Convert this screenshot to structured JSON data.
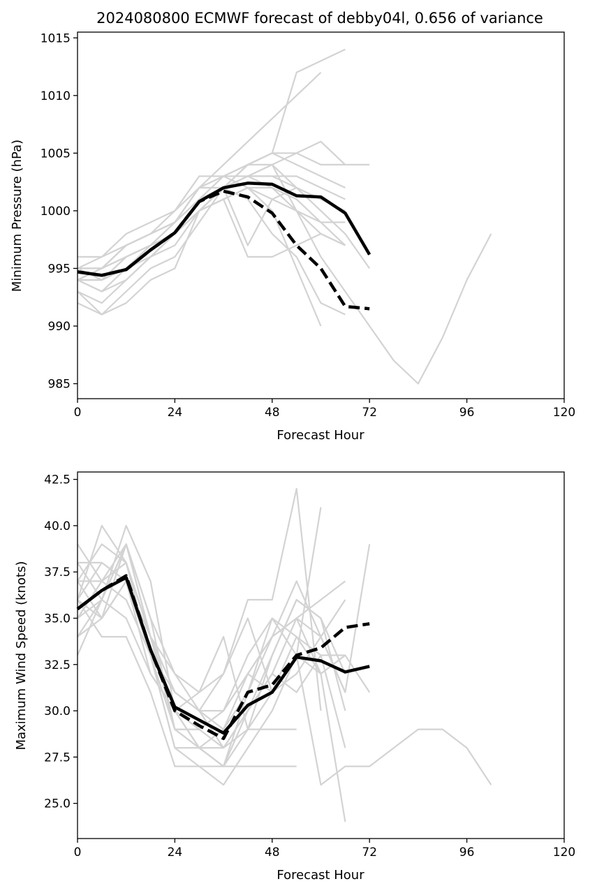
{
  "chart_data": [
    {
      "type": "line",
      "title": "2024080800 ECMWF forecast of debby04l, 0.656 of variance",
      "xlabel": "Forecast Hour",
      "ylabel": "Minimum Pressure (hPa)",
      "xlim": [
        0,
        120
      ],
      "ylim": [
        983.7,
        1015.5
      ],
      "xticks": [
        0,
        24,
        48,
        72,
        96,
        120
      ],
      "yticks": [
        985,
        990,
        995,
        1000,
        1005,
        1010,
        1015
      ],
      "ensemble_members": [
        {
          "x": [
            0,
            6,
            12,
            18,
            24,
            30,
            36,
            42,
            48,
            54,
            60,
            66
          ],
          "y": [
            995,
            996,
            998,
            999,
            1000,
            1002,
            1003,
            1004,
            1005,
            1012,
            1013,
            1014
          ]
        },
        {
          "x": [
            0,
            6,
            12,
            18,
            24,
            30,
            36,
            42,
            48,
            54,
            60
          ],
          "y": [
            994,
            995,
            997,
            998,
            999,
            1002,
            1004,
            1006,
            1008,
            1010,
            1012
          ]
        },
        {
          "x": [
            0,
            6,
            12,
            18,
            24,
            30,
            36,
            42,
            48,
            54,
            60,
            66,
            72,
            78,
            84,
            90,
            96,
            102
          ],
          "y": [
            996,
            996,
            997,
            998,
            999,
            1001,
            1002,
            1003,
            1004,
            1000,
            996,
            993,
            990,
            987,
            985,
            989,
            994,
            998
          ]
        },
        {
          "x": [
            0,
            6,
            12,
            18,
            24,
            30,
            36,
            42,
            48,
            54,
            60,
            66,
            72
          ],
          "y": [
            995,
            995,
            996,
            997,
            998,
            1001,
            1002,
            1004,
            1005,
            1005,
            1004,
            1004,
            1004
          ]
        },
        {
          "x": [
            0,
            6,
            12,
            18,
            24,
            30,
            36,
            42,
            48,
            54,
            60,
            66
          ],
          "y": [
            994,
            994,
            996,
            997,
            998,
            1000,
            1002,
            1003,
            1004,
            1005,
            1006,
            1004
          ]
        },
        {
          "x": [
            0,
            6,
            12,
            18,
            24,
            30,
            36,
            42,
            48,
            54,
            60
          ],
          "y": [
            993,
            991,
            992,
            994,
            995,
            1000,
            1001,
            1002,
            1000,
            995,
            990
          ]
        },
        {
          "x": [
            0,
            6,
            12,
            18,
            24,
            30,
            36,
            42,
            48,
            54,
            60,
            66
          ],
          "y": [
            994,
            993,
            995,
            996,
            998,
            1001,
            1002,
            1001,
            998,
            996,
            992,
            991
          ]
        },
        {
          "x": [
            0,
            6,
            12,
            18,
            24,
            30,
            36,
            42,
            48,
            54,
            60,
            66,
            72
          ],
          "y": [
            994,
            994,
            995,
            997,
            999,
            1002,
            1003,
            1004,
            1004,
            1002,
            1000,
            998,
            995
          ]
        },
        {
          "x": [
            0,
            6,
            12,
            18,
            24,
            30,
            36,
            42,
            48,
            54,
            60,
            66
          ],
          "y": [
            995,
            994,
            996,
            997,
            998,
            1001,
            1003,
            1003,
            1002,
            1000,
            998,
            997
          ]
        },
        {
          "x": [
            0,
            6,
            12,
            18,
            24,
            30,
            36,
            42,
            48,
            54,
            60,
            66
          ],
          "y": [
            993,
            992,
            994,
            996,
            997,
            1000,
            1001,
            1002,
            1002,
            1001,
            999,
            999
          ]
        },
        {
          "x": [
            0,
            6,
            12,
            18,
            24,
            30,
            36,
            42,
            48,
            54,
            60,
            66
          ],
          "y": [
            995,
            995,
            997,
            998,
            999,
            1001,
            1002,
            997,
            1001,
            1002,
            1001,
            1000
          ]
        },
        {
          "x": [
            0,
            6,
            12,
            18,
            24,
            30,
            36,
            42,
            48,
            54,
            60
          ],
          "y": [
            994,
            993,
            994,
            996,
            998,
            1000,
            1002,
            1003,
            1003,
            1002,
            1001
          ]
        },
        {
          "x": [
            0,
            6,
            12,
            18,
            24,
            30,
            36,
            42,
            48,
            54,
            60,
            66
          ],
          "y": [
            995,
            995,
            996,
            997,
            999,
            1002,
            1002,
            1004,
            1005,
            1004,
            1003,
            1002
          ]
        },
        {
          "x": [
            0,
            6,
            12,
            18,
            24,
            30,
            36,
            42,
            48,
            54,
            60,
            66
          ],
          "y": [
            994,
            994,
            995,
            996,
            998,
            1000,
            1001,
            996,
            996,
            997,
            998,
            997
          ]
        },
        {
          "x": [
            0,
            6,
            12,
            18,
            24,
            30,
            36,
            42,
            48,
            54,
            60,
            66
          ],
          "y": [
            992,
            991,
            993,
            995,
            996,
            999,
            1002,
            1003,
            1003,
            1003,
            1002,
            1001
          ]
        },
        {
          "x": [
            0,
            6,
            12,
            18,
            24,
            30,
            36,
            42,
            48,
            54,
            60,
            66
          ],
          "y": [
            994,
            995,
            997,
            998,
            1000,
            1003,
            1003,
            1002,
            1001,
            1000,
            999,
            997
          ]
        }
      ],
      "series": [
        {
          "name": "",
          "style": "solid",
          "x": [
            0,
            6,
            12,
            18,
            24,
            30,
            36,
            42,
            48,
            54,
            60,
            66,
            72
          ],
          "y": [
            994.7,
            994.4,
            994.9,
            996.6,
            998.1,
            1000.8,
            1002.0,
            1002.4,
            1002.3,
            1001.3,
            1001.2,
            999.8,
            996.2
          ]
        },
        {
          "name": "",
          "style": "dashed",
          "x": [
            0,
            6,
            12,
            18,
            24,
            30,
            36,
            42,
            48,
            54,
            60,
            66,
            72
          ],
          "y": [
            994.7,
            994.4,
            994.9,
            996.6,
            998.1,
            1000.8,
            1001.7,
            1001.2,
            999.8,
            997.0,
            995.0,
            991.7,
            991.5
          ]
        }
      ]
    },
    {
      "type": "line",
      "title": "",
      "xlabel": "Forecast Hour",
      "ylabel": "Maximum Wind Speed (knots)",
      "xlim": [
        0,
        120
      ],
      "ylim": [
        23.1,
        42.9
      ],
      "xticks": [
        0,
        24,
        48,
        72,
        96,
        120
      ],
      "yticks": [
        25.0,
        27.5,
        30.0,
        32.5,
        35.0,
        37.5,
        40.0,
        42.5
      ],
      "ensemble_members": [
        {
          "x": [
            0,
            6,
            12,
            18,
            24,
            30,
            36,
            42,
            48,
            54,
            60,
            66
          ],
          "y": [
            39,
            37,
            38,
            34,
            29,
            28,
            27,
            29,
            33,
            36,
            35,
            30
          ]
        },
        {
          "x": [
            0,
            6,
            12,
            18,
            24,
            30,
            36,
            42,
            48,
            54,
            60
          ],
          "y": [
            36,
            40,
            38,
            33,
            31,
            30,
            32,
            36,
            36,
            42,
            30
          ]
        },
        {
          "x": [
            0,
            6,
            12,
            18,
            24,
            30,
            36,
            42,
            48,
            54,
            60,
            66
          ],
          "y": [
            35,
            36,
            40,
            37,
            30,
            28,
            27,
            31,
            34,
            35,
            36,
            37
          ]
        },
        {
          "x": [
            0,
            6,
            12,
            18,
            24,
            30,
            36,
            42,
            48,
            54,
            60,
            66,
            72,
            78,
            84,
            90,
            96,
            102
          ],
          "y": [
            34,
            35,
            37,
            33,
            28,
            27,
            26,
            28,
            30,
            33,
            26,
            27,
            27,
            28,
            29,
            29,
            28,
            26
          ]
        },
        {
          "x": [
            0,
            6,
            12,
            18,
            24,
            30,
            36,
            42,
            48,
            54,
            60
          ],
          "y": [
            33,
            36,
            39,
            35,
            32,
            31,
            34,
            29,
            31,
            33,
            41
          ]
        },
        {
          "x": [
            0,
            6,
            12,
            18,
            24,
            30,
            36,
            42,
            48,
            54,
            60,
            66,
            72
          ],
          "y": [
            38,
            38,
            37,
            32,
            30,
            29,
            30,
            32,
            34,
            37,
            34,
            31,
            39
          ]
        },
        {
          "x": [
            0,
            6,
            12,
            18,
            24,
            30,
            36,
            42,
            48,
            54,
            60,
            66
          ],
          "y": [
            37,
            39,
            38,
            34,
            31,
            30,
            28,
            30,
            32,
            35,
            32,
            24
          ]
        },
        {
          "x": [
            0,
            6,
            12,
            18,
            24,
            30,
            36,
            42,
            48,
            54
          ],
          "y": [
            36,
            34,
            34,
            31,
            27,
            27,
            27,
            27,
            27,
            27
          ]
        },
        {
          "x": [
            0,
            6,
            12,
            18,
            24,
            30,
            36,
            42,
            48,
            54,
            60,
            66
          ],
          "y": [
            35,
            37,
            36,
            33,
            29,
            28,
            29,
            32,
            31,
            32,
            34,
            36
          ]
        },
        {
          "x": [
            0,
            6,
            12,
            18,
            24,
            30,
            36,
            42,
            48,
            54,
            60,
            66
          ],
          "y": [
            37,
            35,
            39,
            35,
            29,
            29,
            30,
            33,
            35,
            34,
            32,
            33
          ]
        },
        {
          "x": [
            0,
            6,
            12,
            18,
            24,
            30,
            36,
            42,
            48,
            54,
            60,
            66
          ],
          "y": [
            36,
            38,
            37,
            33,
            28,
            28,
            27,
            30,
            33,
            36,
            35,
            32
          ]
        },
        {
          "x": [
            0,
            6,
            12,
            18,
            24,
            30,
            36,
            42,
            48,
            54,
            60,
            66
          ],
          "y": [
            38,
            36,
            39,
            34,
            30,
            31,
            32,
            35,
            31,
            34,
            33,
            28
          ]
        },
        {
          "x": [
            0,
            6,
            12,
            18,
            24,
            30,
            36,
            42,
            48,
            54,
            60,
            66,
            72
          ],
          "y": [
            35,
            37,
            38,
            33,
            29,
            29,
            28,
            30,
            32,
            31,
            33,
            33,
            31
          ]
        },
        {
          "x": [
            0,
            6,
            12,
            18,
            24,
            30,
            36,
            42,
            48,
            54
          ],
          "y": [
            34,
            36,
            35,
            32,
            30,
            28,
            28,
            29,
            29,
            29
          ]
        },
        {
          "x": [
            0,
            6,
            12,
            18,
            24,
            30,
            36,
            42,
            48,
            54,
            60,
            66
          ],
          "y": [
            37,
            37,
            39,
            34,
            31,
            30,
            30,
            32,
            34,
            35,
            34,
            31
          ]
        },
        {
          "x": [
            0,
            6,
            12,
            18,
            24,
            30,
            36,
            42,
            48,
            54,
            60,
            66
          ],
          "y": [
            36,
            35,
            37,
            34,
            32,
            30,
            29,
            31,
            35,
            33,
            32,
            33
          ]
        }
      ],
      "series": [
        {
          "name": "",
          "style": "solid",
          "x": [
            0,
            6,
            12,
            18,
            24,
            30,
            36,
            42,
            48,
            54,
            60,
            66,
            72
          ],
          "y": [
            35.5,
            36.5,
            37.2,
            33.3,
            30.2,
            29.5,
            28.8,
            30.3,
            31.0,
            32.9,
            32.7,
            32.1,
            32.4
          ]
        },
        {
          "name": "",
          "style": "dashed",
          "x": [
            0,
            6,
            12,
            18,
            24,
            30,
            36,
            42,
            48,
            54,
            60,
            66,
            72
          ],
          "y": [
            35.5,
            36.5,
            37.3,
            33.3,
            30.0,
            29.2,
            28.5,
            31.0,
            31.4,
            33.0,
            33.4,
            34.5,
            34.7
          ]
        }
      ]
    }
  ],
  "colors": {
    "ensemble": "#d3d3d3",
    "mean": "#000000"
  }
}
